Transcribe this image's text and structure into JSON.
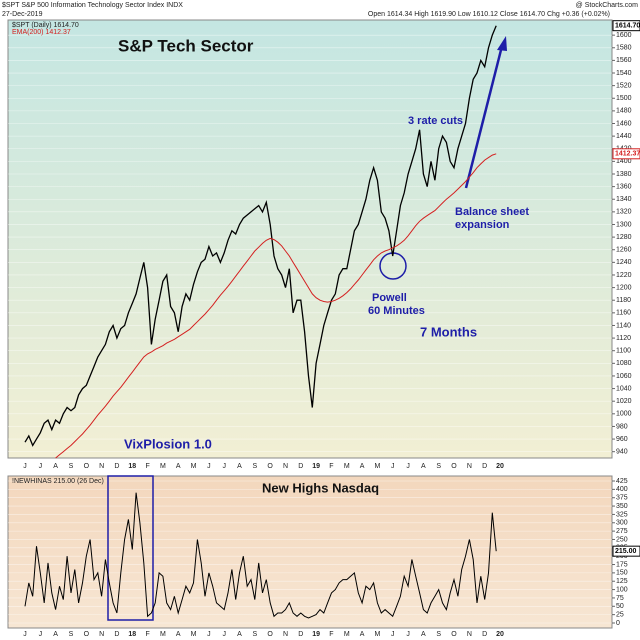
{
  "chart_data": [
    {
      "type": "line",
      "title": "S&P Tech Sector",
      "symbol_line": "$SPT S&P 500 Information Technology Sector Index INDX",
      "source": "@ StockCharts.com",
      "date": "27-Dec-2019",
      "ohlc": "Open 1614.34  High 1619.90  Low 1610.12  Close 1614.70  Chg +0.36 (+0.02%)",
      "annotations": {
        "rate_cuts": "3 rate cuts",
        "balance_1": "Balance sheet",
        "balance_2": "expansion",
        "powell_1": "Powell",
        "powell_2": "60 Minutes",
        "months": "7 Months",
        "vix": "VixPlosion 1.0"
      },
      "categories": [
        "J",
        null,
        null,
        null,
        "J",
        null,
        null,
        null,
        "A",
        null,
        null,
        null,
        "S",
        null,
        null,
        null,
        "O",
        null,
        null,
        null,
        "N",
        null,
        null,
        null,
        "D",
        null,
        null,
        null,
        "18",
        null,
        null,
        null,
        "F",
        null,
        null,
        null,
        "M",
        null,
        null,
        null,
        "A",
        null,
        null,
        null,
        "M",
        null,
        null,
        null,
        "J",
        null,
        null,
        null,
        "J",
        null,
        null,
        null,
        "A",
        null,
        null,
        null,
        "S",
        null,
        null,
        null,
        "O",
        null,
        null,
        null,
        "N",
        null,
        null,
        null,
        "D",
        null,
        null,
        null,
        "19",
        null,
        null,
        null,
        "F",
        null,
        null,
        null,
        "M",
        null,
        null,
        null,
        "A",
        null,
        null,
        null,
        "M",
        null,
        null,
        null,
        "J",
        null,
        null,
        null,
        "J",
        null,
        null,
        null,
        "A",
        null,
        null,
        null,
        "S",
        null,
        null,
        null,
        "O",
        null,
        null,
        null,
        "N",
        null,
        null,
        null,
        "D",
        null,
        null,
        null,
        "20"
      ],
      "series": [
        {
          "name": "$SPT (Daily) 1614.70",
          "color": "#000000",
          "last_label": "1614.70",
          "values": [
            955,
            965,
            950,
            960,
            970,
            985,
            990,
            975,
            990,
            985,
            1000,
            1010,
            1005,
            1010,
            1030,
            1040,
            1045,
            1060,
            1075,
            1090,
            1100,
            1110,
            1130,
            1140,
            1120,
            1135,
            1140,
            1160,
            1175,
            1190,
            1215,
            1240,
            1200,
            1110,
            1150,
            1180,
            1210,
            1220,
            1170,
            1160,
            1130,
            1170,
            1190,
            1180,
            1205,
            1225,
            1240,
            1245,
            1265,
            1250,
            1255,
            1240,
            1255,
            1275,
            1290,
            1285,
            1300,
            1310,
            1315,
            1320,
            1325,
            1330,
            1320,
            1335,
            1300,
            1250,
            1230,
            1220,
            1200,
            1230,
            1160,
            1180,
            1180,
            1130,
            1060,
            1010,
            1080,
            1110,
            1140,
            1160,
            1180,
            1190,
            1220,
            1230,
            1230,
            1260,
            1290,
            1300,
            1320,
            1340,
            1370,
            1390,
            1370,
            1320,
            1310,
            1290,
            1250,
            1290,
            1330,
            1350,
            1380,
            1400,
            1420,
            1450,
            1380,
            1360,
            1400,
            1370,
            1420,
            1440,
            1430,
            1400,
            1390,
            1420,
            1440,
            1460,
            1500,
            1530,
            1540,
            1560,
            1550,
            1580,
            1600,
            1615,
            null
          ]
        },
        {
          "name": "EMA(200) 1412.37",
          "color": "#d42020",
          "last_label": "1412.37",
          "values": [
            null,
            null,
            null,
            null,
            null,
            null,
            null,
            null,
            930,
            935,
            940,
            945,
            950,
            956,
            962,
            968,
            975,
            982,
            990,
            998,
            1005,
            1012,
            1020,
            1028,
            1035,
            1042,
            1050,
            1058,
            1066,
            1074,
            1082,
            1090,
            1095,
            1098,
            1102,
            1105,
            1108,
            1112,
            1115,
            1118,
            1122,
            1126,
            1130,
            1134,
            1140,
            1146,
            1152,
            1158,
            1165,
            1172,
            1180,
            1188,
            1195,
            1202,
            1210,
            1218,
            1226,
            1234,
            1242,
            1250,
            1258,
            1264,
            1270,
            1275,
            1278,
            1276,
            1272,
            1266,
            1258,
            1250,
            1240,
            1230,
            1220,
            1210,
            1200,
            1190,
            1184,
            1180,
            1178,
            1177,
            1178,
            1180,
            1183,
            1187,
            1192,
            1198,
            1205,
            1212,
            1220,
            1228,
            1236,
            1244,
            1250,
            1255,
            1258,
            1260,
            1263,
            1266,
            1270,
            1275,
            1282,
            1290,
            1298,
            1305,
            1310,
            1314,
            1318,
            1322,
            1328,
            1334,
            1340,
            1345,
            1350,
            1356,
            1362,
            1368,
            1375,
            1382,
            1390,
            1396,
            1402,
            1406,
            1410,
            1412,
            null
          ]
        }
      ],
      "ylim": [
        930,
        1624
      ],
      "yticks": [
        940,
        960,
        980,
        1000,
        1020,
        1040,
        1060,
        1080,
        1100,
        1120,
        1140,
        1160,
        1180,
        1200,
        1220,
        1240,
        1260,
        1280,
        1300,
        1320,
        1340,
        1360,
        1380,
        1400,
        1420,
        1440,
        1460,
        1480,
        1500,
        1520,
        1540,
        1560,
        1580,
        1600
      ],
      "grid": true
    },
    {
      "type": "line",
      "title": "New Highs Nasdaq",
      "categories": [
        "J",
        null,
        null,
        null,
        "J",
        null,
        null,
        null,
        "A",
        null,
        null,
        null,
        "S",
        null,
        null,
        null,
        "O",
        null,
        null,
        null,
        "N",
        null,
        null,
        null,
        "D",
        null,
        null,
        null,
        "18",
        null,
        null,
        null,
        "F",
        null,
        null,
        null,
        "M",
        null,
        null,
        null,
        "A",
        null,
        null,
        null,
        "M",
        null,
        null,
        null,
        "J",
        null,
        null,
        null,
        "J",
        null,
        null,
        null,
        "A",
        null,
        null,
        null,
        "S",
        null,
        null,
        null,
        "O",
        null,
        null,
        null,
        "N",
        null,
        null,
        null,
        "D",
        null,
        null,
        null,
        "19",
        null,
        null,
        null,
        "F",
        null,
        null,
        null,
        "M",
        null,
        null,
        null,
        "A",
        null,
        null,
        null,
        "M",
        null,
        null,
        null,
        "J",
        null,
        null,
        null,
        "J",
        null,
        null,
        null,
        "A",
        null,
        null,
        null,
        "S",
        null,
        null,
        null,
        "O",
        null,
        null,
        null,
        "N",
        null,
        null,
        null,
        "D",
        null,
        null,
        null,
        "20"
      ],
      "series": [
        {
          "name": "!NEWHINAS 215.00 (26 Dec)",
          "color": "#000000",
          "last_label": "215.00",
          "values": [
            50,
            120,
            80,
            230,
            150,
            60,
            180,
            90,
            40,
            110,
            70,
            200,
            90,
            160,
            60,
            120,
            200,
            250,
            130,
            150,
            80,
            190,
            120,
            60,
            30,
            150,
            250,
            310,
            220,
            390,
            300,
            180,
            20,
            30,
            60,
            150,
            140,
            60,
            40,
            80,
            30,
            70,
            110,
            90,
            120,
            250,
            180,
            80,
            150,
            110,
            60,
            50,
            40,
            90,
            160,
            70,
            150,
            200,
            110,
            130,
            70,
            180,
            90,
            130,
            60,
            20,
            30,
            30,
            40,
            60,
            30,
            20,
            30,
            20,
            15,
            20,
            25,
            40,
            30,
            60,
            90,
            100,
            120,
            130,
            130,
            140,
            150,
            90,
            60,
            110,
            100,
            120,
            60,
            30,
            40,
            30,
            20,
            50,
            80,
            140,
            110,
            190,
            140,
            90,
            40,
            30,
            60,
            80,
            100,
            60,
            40,
            90,
            130,
            80,
            160,
            200,
            250,
            190,
            60,
            140,
            70,
            150,
            330,
            215,
            null
          ]
        }
      ],
      "ylim": [
        -15,
        440
      ],
      "yticks": [
        0,
        25,
        50,
        75,
        100,
        125,
        150,
        175,
        200,
        225,
        250,
        275,
        300,
        325,
        350,
        375,
        400,
        425
      ],
      "grid": true
    }
  ]
}
